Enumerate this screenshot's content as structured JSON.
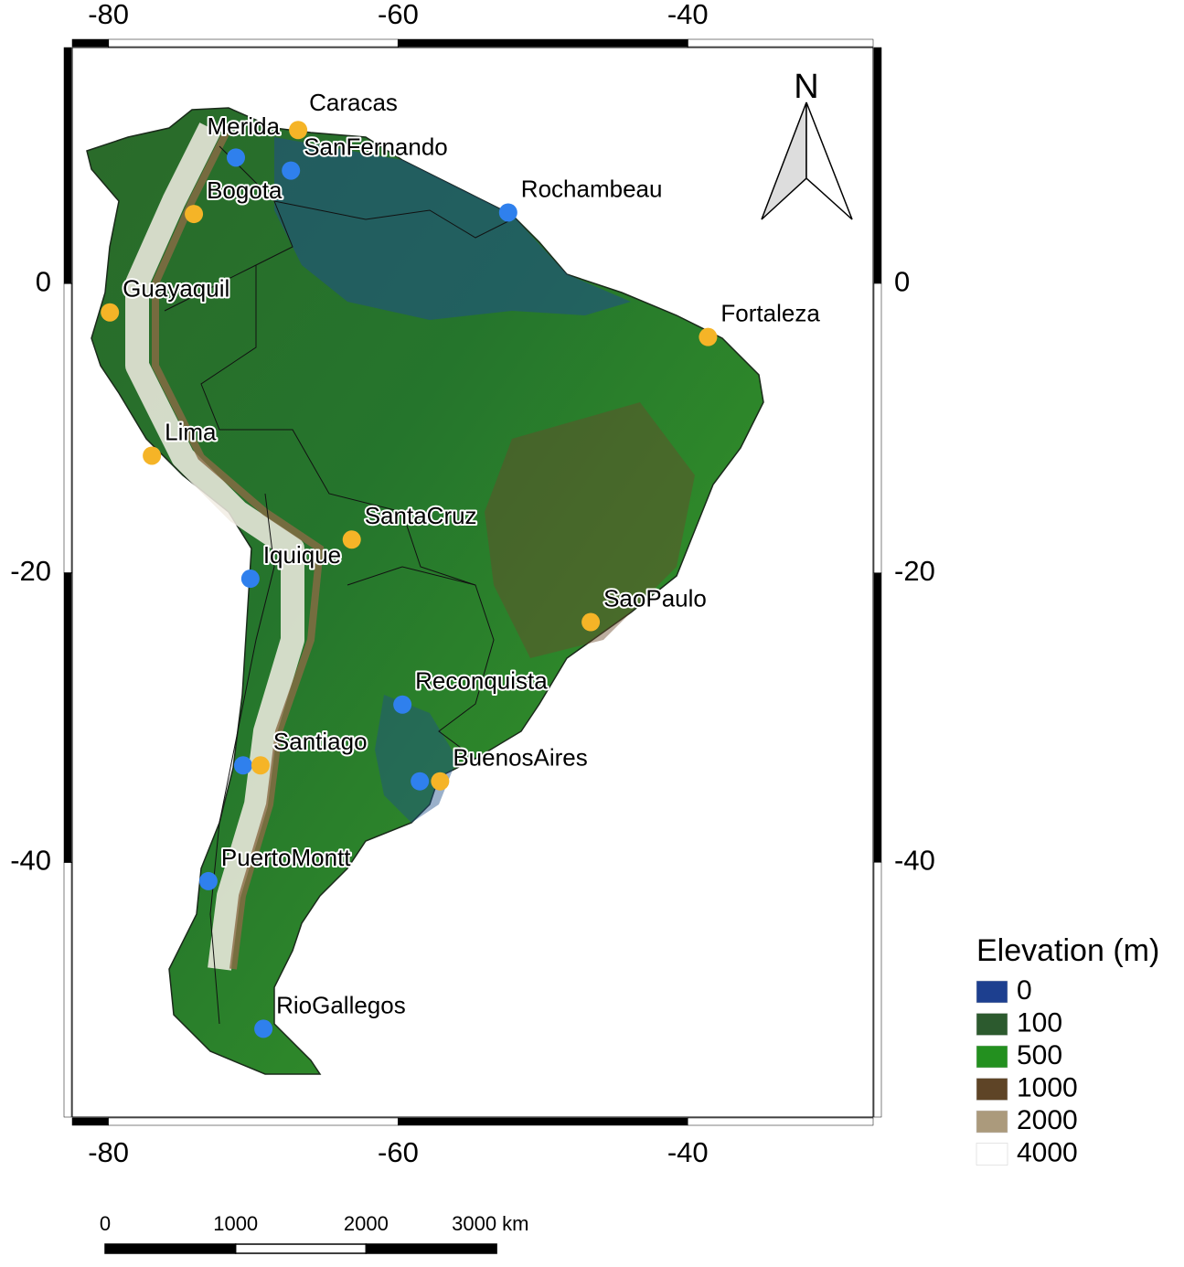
{
  "map": {
    "xlim": [
      -82.5,
      -27.2
    ],
    "ylim": [
      -57.6,
      16.3
    ],
    "xticks": [
      -80,
      -60,
      -40
    ],
    "yticks": [
      0,
      -20,
      -40
    ],
    "stations": [
      {
        "name": "Caracas",
        "lon": -66.9,
        "lat": 10.6,
        "color": "#f5b427"
      },
      {
        "name": "Merida",
        "lon": -71.2,
        "lat": 8.7,
        "color": "#2f80ed"
      },
      {
        "name": "SanFernando",
        "lon": -67.4,
        "lat": 7.8,
        "color": "#2f80ed"
      },
      {
        "name": "Rochambeau",
        "lon": -52.4,
        "lat": 4.9,
        "color": "#2f80ed"
      },
      {
        "name": "Bogota",
        "lon": -74.1,
        "lat": 4.8,
        "color": "#f5b427"
      },
      {
        "name": "Guayaquil",
        "lon": -79.9,
        "lat": -2.0,
        "color": "#f5b427"
      },
      {
        "name": "Fortaleza",
        "lon": -38.6,
        "lat": -3.7,
        "color": "#f5b427"
      },
      {
        "name": "Lima",
        "lon": -77.0,
        "lat": -11.9,
        "color": "#f5b427"
      },
      {
        "name": "SantaCruz",
        "lon": -63.2,
        "lat": -17.7,
        "color": "#f5b427"
      },
      {
        "name": "Iquique",
        "lon": -70.2,
        "lat": -20.4,
        "color": "#2f80ed"
      },
      {
        "name": "SaoPaulo",
        "lon": -46.7,
        "lat": -23.4,
        "color": "#f5b427"
      },
      {
        "name": "Reconquista",
        "lon": -59.7,
        "lat": -29.1,
        "color": "#2f80ed"
      },
      {
        "name": null,
        "lon": -70.7,
        "lat": -33.3,
        "color": "#2f80ed"
      },
      {
        "name": "Santiago",
        "lon": -69.5,
        "lat": -33.3,
        "color": "#f5b427"
      },
      {
        "name": null,
        "lon": -58.5,
        "lat": -34.4,
        "color": "#2f80ed"
      },
      {
        "name": "BuenosAires",
        "lon": -57.1,
        "lat": -34.4,
        "color": "#f5b427"
      },
      {
        "name": "PuertoMontt",
        "lon": -73.1,
        "lat": -41.3,
        "color": "#2f80ed"
      },
      {
        "name": "RioGallegos",
        "lon": -69.3,
        "lat": -51.5,
        "color": "#2f80ed"
      }
    ],
    "north": "N",
    "legend": {
      "title": "Elevation (m)",
      "entries": [
        {
          "value": 0,
          "color": "#1d3f8f"
        },
        {
          "value": 100,
          "color": "#2c5a2e"
        },
        {
          "value": 500,
          "color": "#23901f"
        },
        {
          "value": 1000,
          "color": "#5e4426"
        },
        {
          "value": 2000,
          "color": "#ab9a7c"
        },
        {
          "value": 4000,
          "color": "#ffffff"
        }
      ]
    },
    "scale_bar": {
      "ticks": [
        0,
        1000,
        2000,
        3000
      ],
      "unit": "km"
    }
  }
}
